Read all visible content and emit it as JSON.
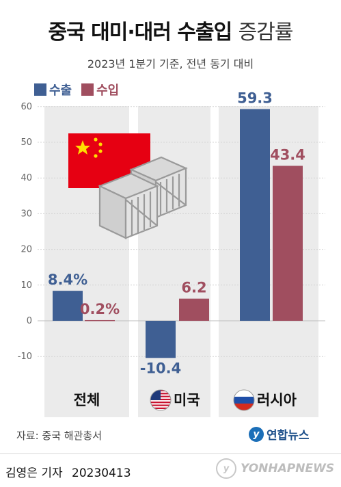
{
  "header": {
    "title_main": "중국 대미·대러 수출입",
    "title_sub": "증감률",
    "subtitle": "2023년 1분기 기준, 전년 동기 대비"
  },
  "legend": {
    "export_label": "수출",
    "import_label": "수입"
  },
  "colors": {
    "export": "#3f5f93",
    "import": "#a04e5f",
    "panel_bg": "#ebebeb",
    "export_text": "#3f5f93",
    "import_text": "#a04e5f"
  },
  "chart_data": {
    "type": "bar",
    "categories": [
      "전체",
      "미국",
      "러시아"
    ],
    "series": [
      {
        "name": "수출",
        "values": [
          8.4,
          -10.4,
          59.3
        ],
        "labels": [
          "8.4%",
          "-10.4",
          "59.3"
        ]
      },
      {
        "name": "수입",
        "values": [
          0.2,
          6.2,
          43.4
        ],
        "labels": [
          "0.2%",
          "6.2",
          "43.4"
        ]
      }
    ],
    "yticks": [
      60,
      50,
      40,
      30,
      20,
      10,
      0,
      -10
    ],
    "ylim": [
      -10,
      60
    ],
    "grid": true,
    "legend_position": "top-left",
    "category_icons": [
      "",
      "us-flag-icon",
      "russia-flag-icon"
    ]
  },
  "footer": {
    "source": "자료: 중국 해관총서",
    "brand": "연합뉴스",
    "byline": "김영은 기자",
    "date": "20230413",
    "watermark": "YONHAPNEWS"
  }
}
